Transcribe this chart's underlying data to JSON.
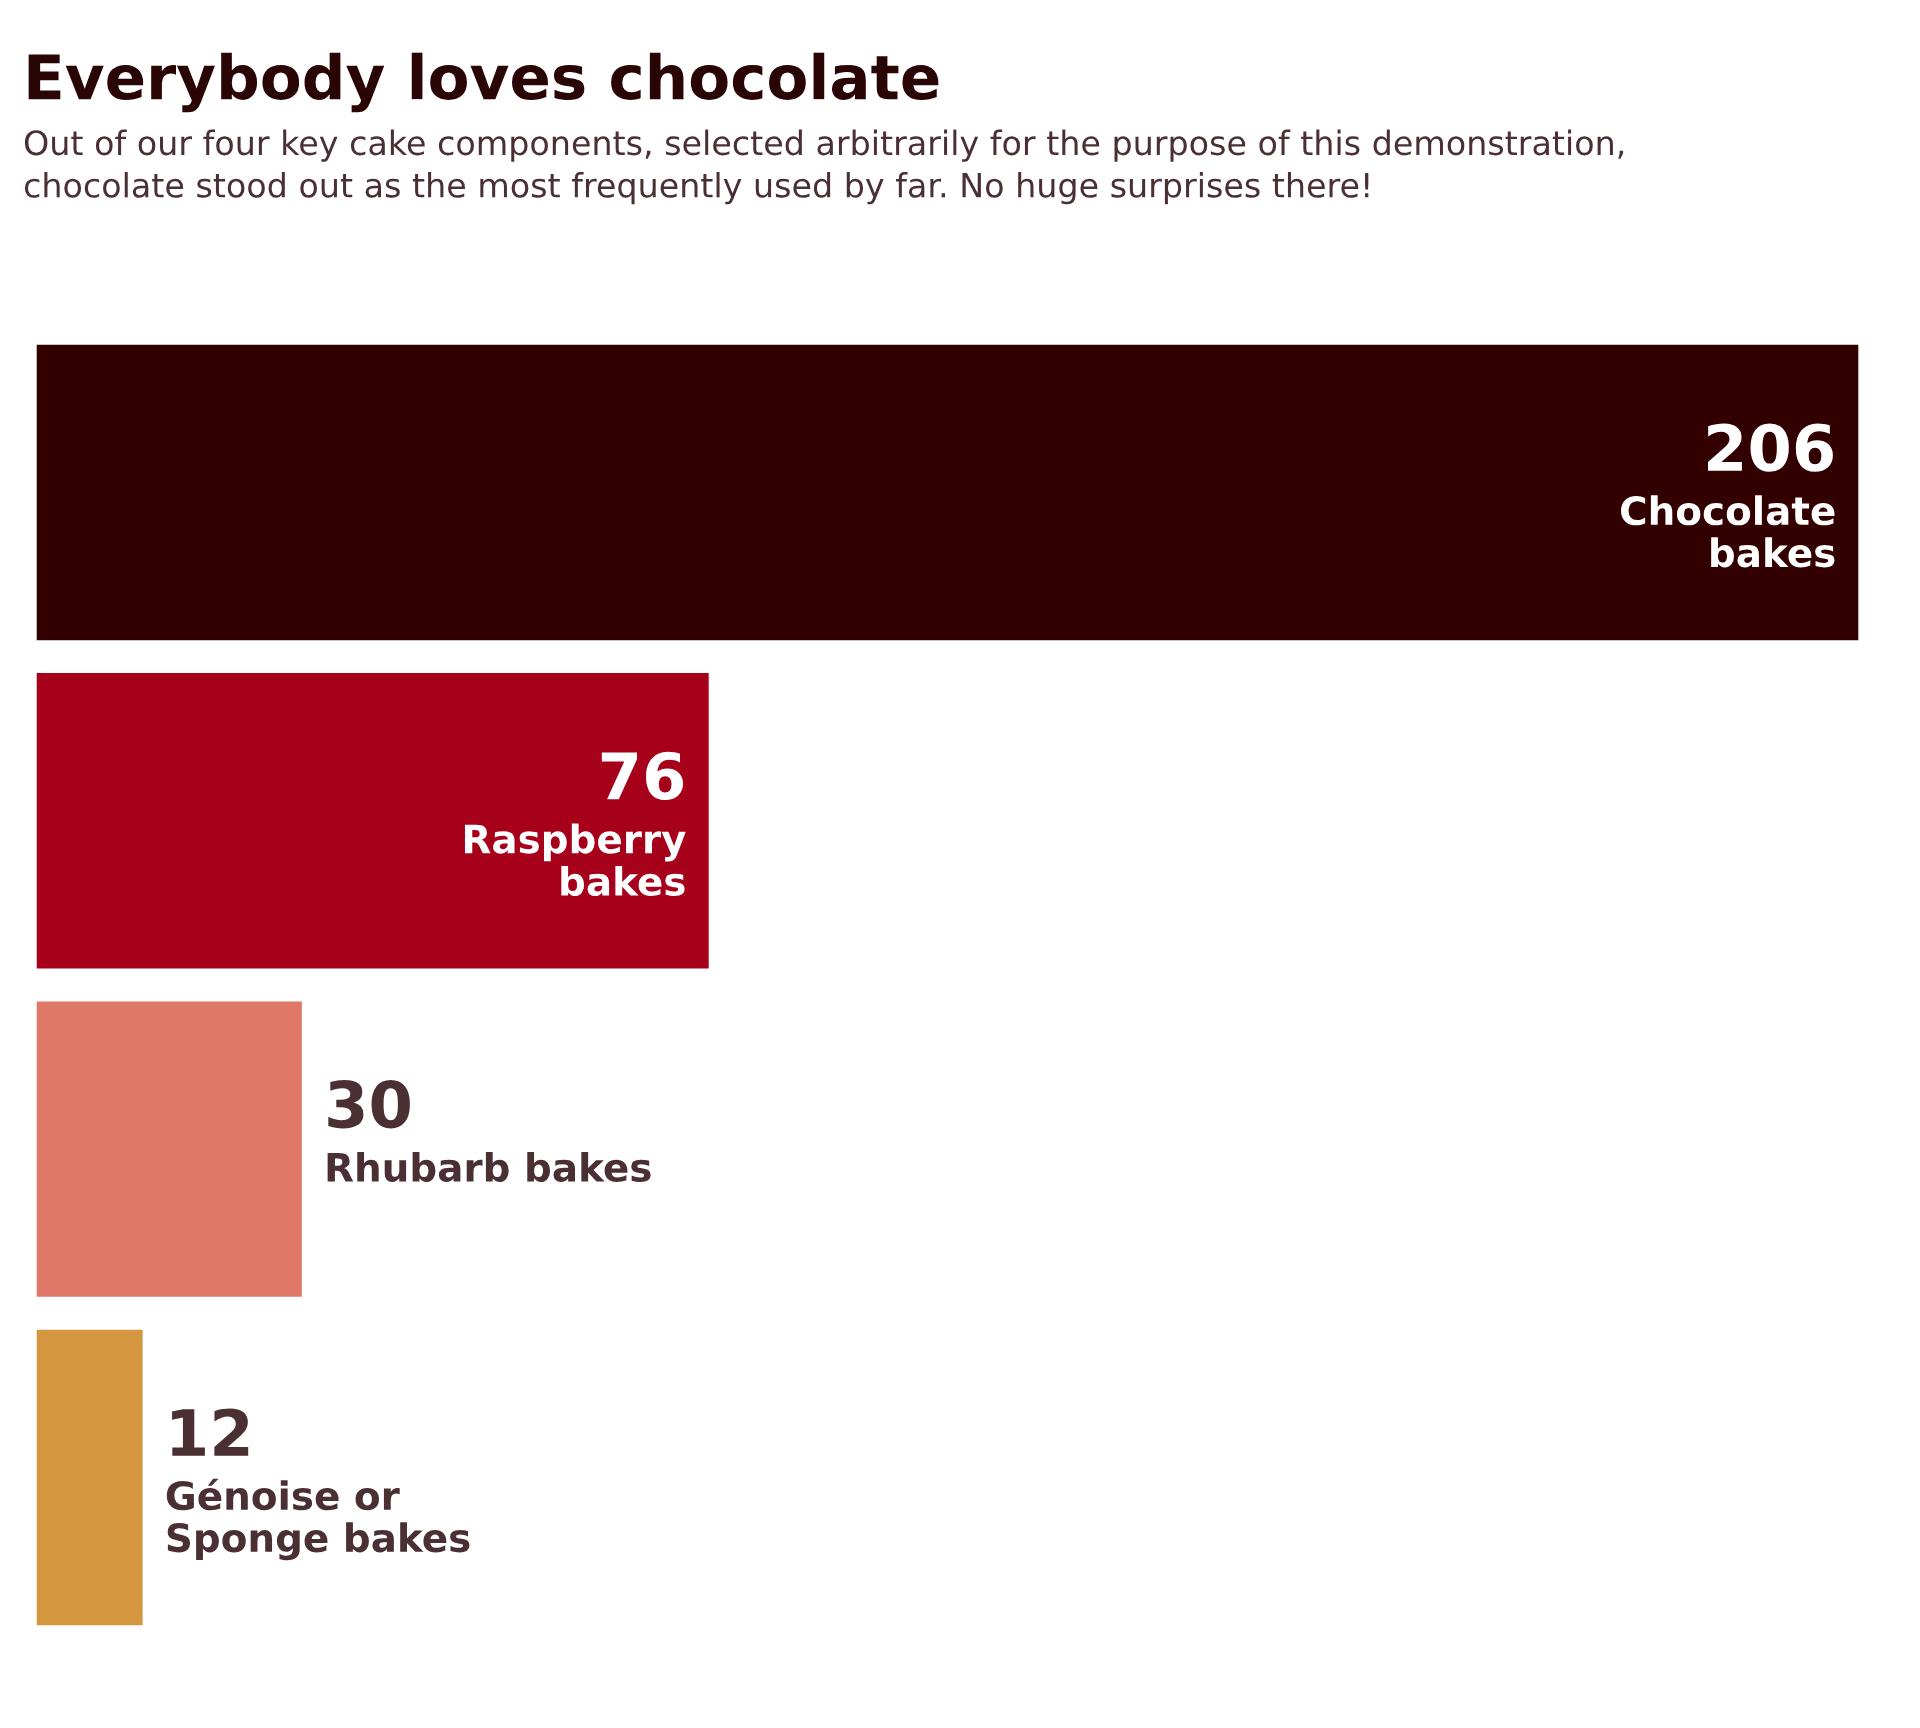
{
  "chart_data": {
    "type": "bar",
    "orientation": "horizontal",
    "title": "Everybody loves chocolate",
    "subtitle": "Out of our four key cake components, selected arbitrarily for the purpose of this demonstration,\nchocolate stood out as the most frequently used by far. No huge surprises there!",
    "categories": [
      "Chocolate\nbakes",
      "Raspberry\nbakes",
      "Rhubarb bakes",
      "Génoise or\nSponge bakes"
    ],
    "values": [
      206,
      76,
      30,
      12
    ],
    "colors": [
      "#330000",
      "#a6001a",
      "#e07868",
      "#d4963f"
    ],
    "data_labels": true,
    "tick_labels": false
  }
}
